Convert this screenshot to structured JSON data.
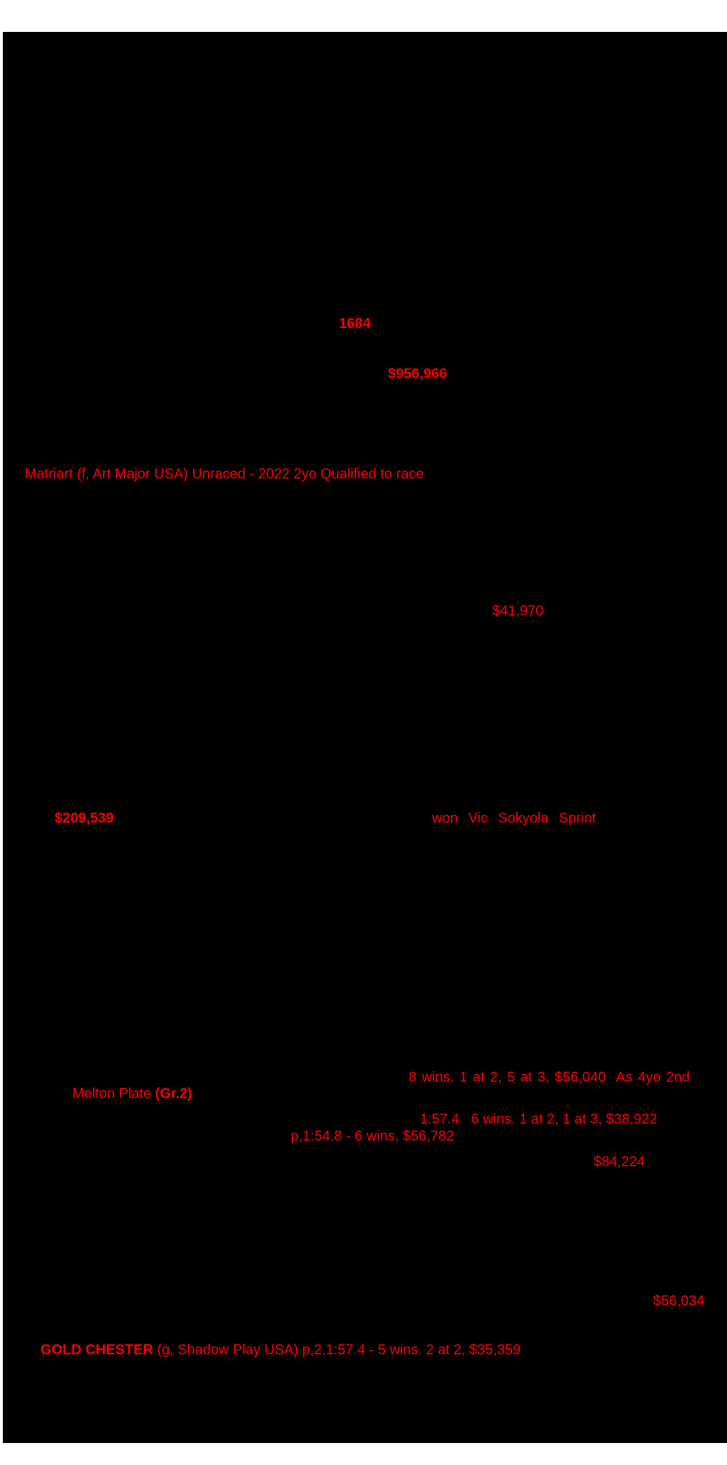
{
  "page": {
    "kind": "standardbred-sale-catalogue-page",
    "background_color": "#ffffff",
    "canvas_color": "#000000",
    "overprint_color": "#ff0000"
  },
  "content": {
    "lot_number": "1684",
    "earnings_total": "$956,966",
    "update_matriart": "Matriart (f, Art Major USA) Unraced - 2022 2yo Qualified to race",
    "earnings_41970": "$41,970",
    "earnings_209539": "$209,539",
    "race_won_line": "won Vic Sokyola Sprint",
    "record_line_a": "8 wins. 1 at 2, 5 at 3, $56,040  As 4yo 2nd",
    "race_name": "Melton Plate ",
    "race_grade": "(Gr.2)",
    "record_line_b": "1:57.4   6 wins. 1 at 2, 1 at 3, $38,922",
    "record_line_c": "p,1:54.8 - 6 wins. $56,782",
    "earnings_84224": "$84,224",
    "earnings_56034": "$56,034",
    "gold_chester_name": "GOLD CHESTER",
    "gold_chester_rest": " (g, Shadow Play USA) p,2,1:57.4 - 5 wins. 2 at 2, $35,359"
  }
}
